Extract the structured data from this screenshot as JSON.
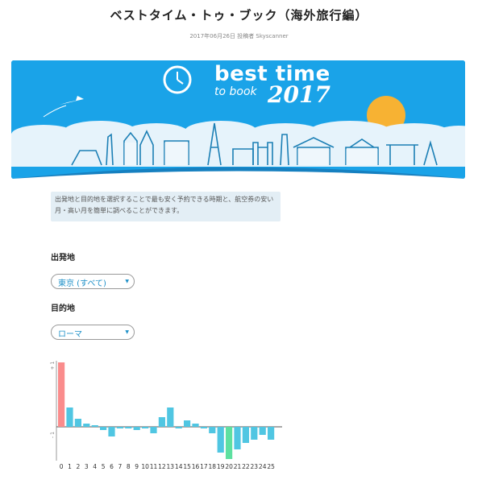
{
  "page": {
    "title": "ベストタイム・トゥ・ブック（海外旅行編）",
    "meta": "2017年06月26日 投稿者 Skyscanner"
  },
  "banner": {
    "title": "best time",
    "subtitle": "to book",
    "year": "2017",
    "colors": {
      "sky": "#1aa3e8",
      "sun": "#f7b233",
      "cloud": "#e6f3fb"
    }
  },
  "info": {
    "text": "出発地と目的地を選択することで最も安く予約できる時期と、航空券の安い月・高い月を簡単に調べることができます。"
  },
  "form": {
    "origin_label": "出発地",
    "origin_value": "東京 (すべて)",
    "destination_label": "目的地",
    "destination_value": "ローマ",
    "arrow_icon": "chevron-down-icon"
  },
  "chart_data": {
    "type": "bar",
    "categories": [
      "0",
      "1",
      "2",
      "3",
      "4",
      "5",
      "6",
      "7",
      "8",
      "9",
      "10",
      "11",
      "12",
      "13",
      "14",
      "15",
      "16",
      "17",
      "18",
      "19",
      "20",
      "21",
      "22",
      "23",
      "24",
      "25"
    ],
    "values": [
      20,
      6,
      2.5,
      1,
      0.5,
      -1,
      -3,
      -0.5,
      -0.5,
      -1,
      -0.5,
      -2,
      3,
      6,
      -0.5,
      2,
      1,
      -0.5,
      -2,
      -8,
      -10,
      -7,
      -5,
      -4,
      -2.5,
      -4
    ],
    "ytick_labels": [
      "+ 1",
      "- 1"
    ],
    "ylim": [
      -10,
      20
    ],
    "colors": {
      "max": "#fa8c8c",
      "min": "#5ee0a0",
      "normal": "#50c6e2"
    },
    "max_index": 0,
    "min_index": 20
  }
}
